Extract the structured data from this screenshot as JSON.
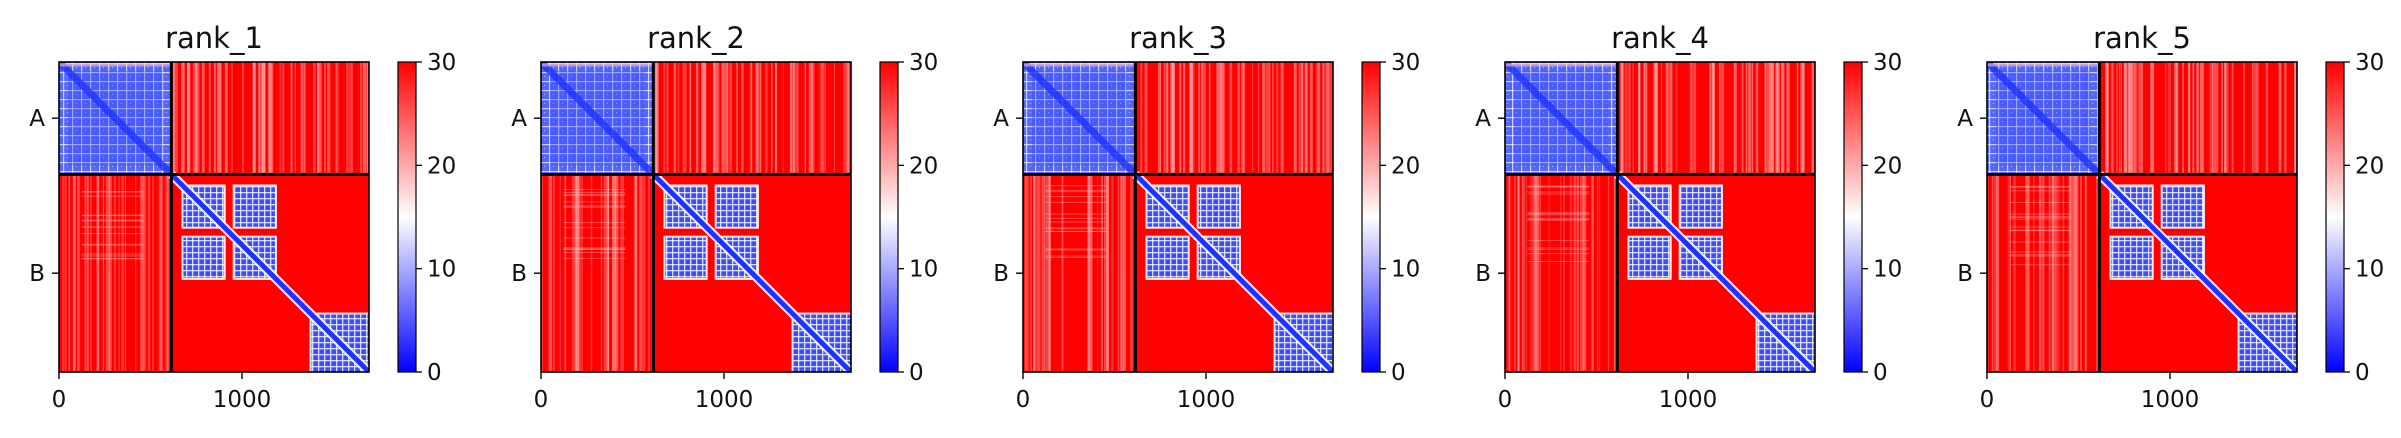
{
  "figure": {
    "background": "#ffffff"
  },
  "chart_data": [
    {
      "type": "heatmap",
      "title": "rank_1",
      "xlabel": "",
      "ylabel": "",
      "xlim": [
        0,
        1694
      ],
      "ylim": [
        1694,
        0
      ],
      "x_ticks": [
        0,
        1000
      ],
      "x_tick_labels": [
        "0",
        "1000"
      ],
      "chains": [
        {
          "label": "A",
          "start": 0,
          "end": 614
        },
        {
          "label": "B",
          "start": 614,
          "end": 1694
        }
      ],
      "colorbar": {
        "min": 0,
        "max": 30,
        "ticks": [
          0,
          10,
          20,
          30
        ],
        "tick_labels": [
          "0",
          "10",
          "20",
          "30"
        ],
        "colormap": "bwr",
        "colors": [
          "#0000ff",
          "#ffffff",
          "#ff0000"
        ]
      }
    },
    {
      "type": "heatmap",
      "title": "rank_2",
      "xlabel": "",
      "ylabel": "",
      "xlim": [
        0,
        1694
      ],
      "ylim": [
        1694,
        0
      ],
      "x_ticks": [
        0,
        1000
      ],
      "x_tick_labels": [
        "0",
        "1000"
      ],
      "chains": [
        {
          "label": "A",
          "start": 0,
          "end": 614
        },
        {
          "label": "B",
          "start": 614,
          "end": 1694
        }
      ],
      "colorbar": {
        "min": 0,
        "max": 30,
        "ticks": [
          0,
          10,
          20,
          30
        ],
        "tick_labels": [
          "0",
          "10",
          "20",
          "30"
        ],
        "colormap": "bwr",
        "colors": [
          "#0000ff",
          "#ffffff",
          "#ff0000"
        ]
      }
    },
    {
      "type": "heatmap",
      "title": "rank_3",
      "xlabel": "",
      "ylabel": "",
      "xlim": [
        0,
        1694
      ],
      "ylim": [
        1694,
        0
      ],
      "x_ticks": [
        0,
        1000
      ],
      "x_tick_labels": [
        "0",
        "1000"
      ],
      "chains": [
        {
          "label": "A",
          "start": 0,
          "end": 614
        },
        {
          "label": "B",
          "start": 614,
          "end": 1694
        }
      ],
      "colorbar": {
        "min": 0,
        "max": 30,
        "ticks": [
          0,
          10,
          20,
          30
        ],
        "tick_labels": [
          "0",
          "10",
          "20",
          "30"
        ],
        "colormap": "bwr",
        "colors": [
          "#0000ff",
          "#ffffff",
          "#ff0000"
        ]
      }
    },
    {
      "type": "heatmap",
      "title": "rank_4",
      "xlabel": "",
      "ylabel": "",
      "xlim": [
        0,
        1694
      ],
      "ylim": [
        1694,
        0
      ],
      "x_ticks": [
        0,
        1000
      ],
      "x_tick_labels": [
        "0",
        "1000"
      ],
      "chains": [
        {
          "label": "A",
          "start": 0,
          "end": 614
        },
        {
          "label": "B",
          "start": 614,
          "end": 1694
        }
      ],
      "colorbar": {
        "min": 0,
        "max": 30,
        "ticks": [
          0,
          10,
          20,
          30
        ],
        "tick_labels": [
          "0",
          "10",
          "20",
          "30"
        ],
        "colormap": "bwr",
        "colors": [
          "#0000ff",
          "#ffffff",
          "#ff0000"
        ]
      }
    },
    {
      "type": "heatmap",
      "title": "rank_5",
      "xlabel": "",
      "ylabel": "",
      "xlim": [
        0,
        1694
      ],
      "ylim": [
        1694,
        0
      ],
      "x_ticks": [
        0,
        1000
      ],
      "x_tick_labels": [
        "0",
        "1000"
      ],
      "chains": [
        {
          "label": "A",
          "start": 0,
          "end": 614
        },
        {
          "label": "B",
          "start": 614,
          "end": 1694
        }
      ],
      "colorbar": {
        "min": 0,
        "max": 30,
        "ticks": [
          0,
          10,
          20,
          30
        ],
        "tick_labels": [
          "0",
          "10",
          "20",
          "30"
        ],
        "colormap": "bwr",
        "colors": [
          "#0000ff",
          "#ffffff",
          "#ff0000"
        ]
      }
    }
  ]
}
